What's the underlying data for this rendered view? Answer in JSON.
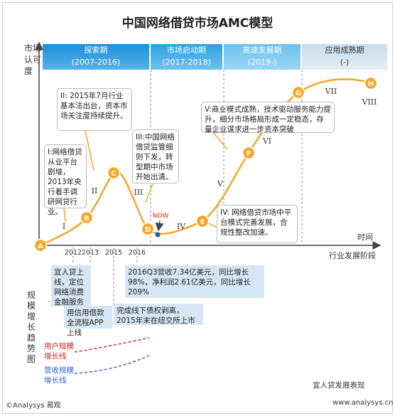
{
  "title": "中国网络借贷市场AMC模型",
  "y_axis_label": "市场认可度",
  "time_label": "时间",
  "stage_axis_label": "行业发展阶段",
  "phases": [
    {
      "name": "探索期",
      "period": "(2007-2016)"
    },
    {
      "name": "市场启动期",
      "period": "(2017-2018)"
    },
    {
      "name": "高速发展期",
      "period": "(2019-)"
    },
    {
      "name": "应用成熟期",
      "period": "(-)"
    }
  ],
  "points": [
    "A",
    "B",
    "C",
    "D",
    "E",
    "F",
    "G",
    "H"
  ],
  "stage_numerals": [
    "I",
    "II",
    "III",
    "IV",
    "V",
    "VI",
    "VII",
    "VIII"
  ],
  "now_label": "NOW",
  "callouts": [
    "I:网络借贷从业平台剧增，2013年央行着手调研网贷行业。",
    "II: 2015年7月行业基本法出台，资本市场关注度持续提升。",
    "III:中国网络借贷监管细则下发，转型期中市场开始出清。",
    "IV: 网络借贷市场中平台模式完善发展，合规性整改加速。",
    "V:商业模式成熟，技术驱动服务能力提升，细分市场格局形成一定稳态，存量企业谋求进一步资本突破"
  ],
  "years": [
    "2012",
    "2013",
    "2015",
    "2016"
  ],
  "milestones": [
    "宜人贷上线，定位网络消费金融服务",
    "用信用借款全流程APP上线",
    "2016Q3营收7.34亿美元，同比增长98%，净利润2.61亿美元，同比增长209%",
    "完成线下债权剥离，2015年末在纽交所上市"
  ],
  "trend_label": "规模增长趋势图",
  "legend": [
    "用户规模增长线",
    "营收规模增长线"
  ],
  "company_label": "宜人贷发展表现",
  "footer": {
    "copyright": "©Analysys 易观",
    "url": "www.analysys.cn"
  }
}
